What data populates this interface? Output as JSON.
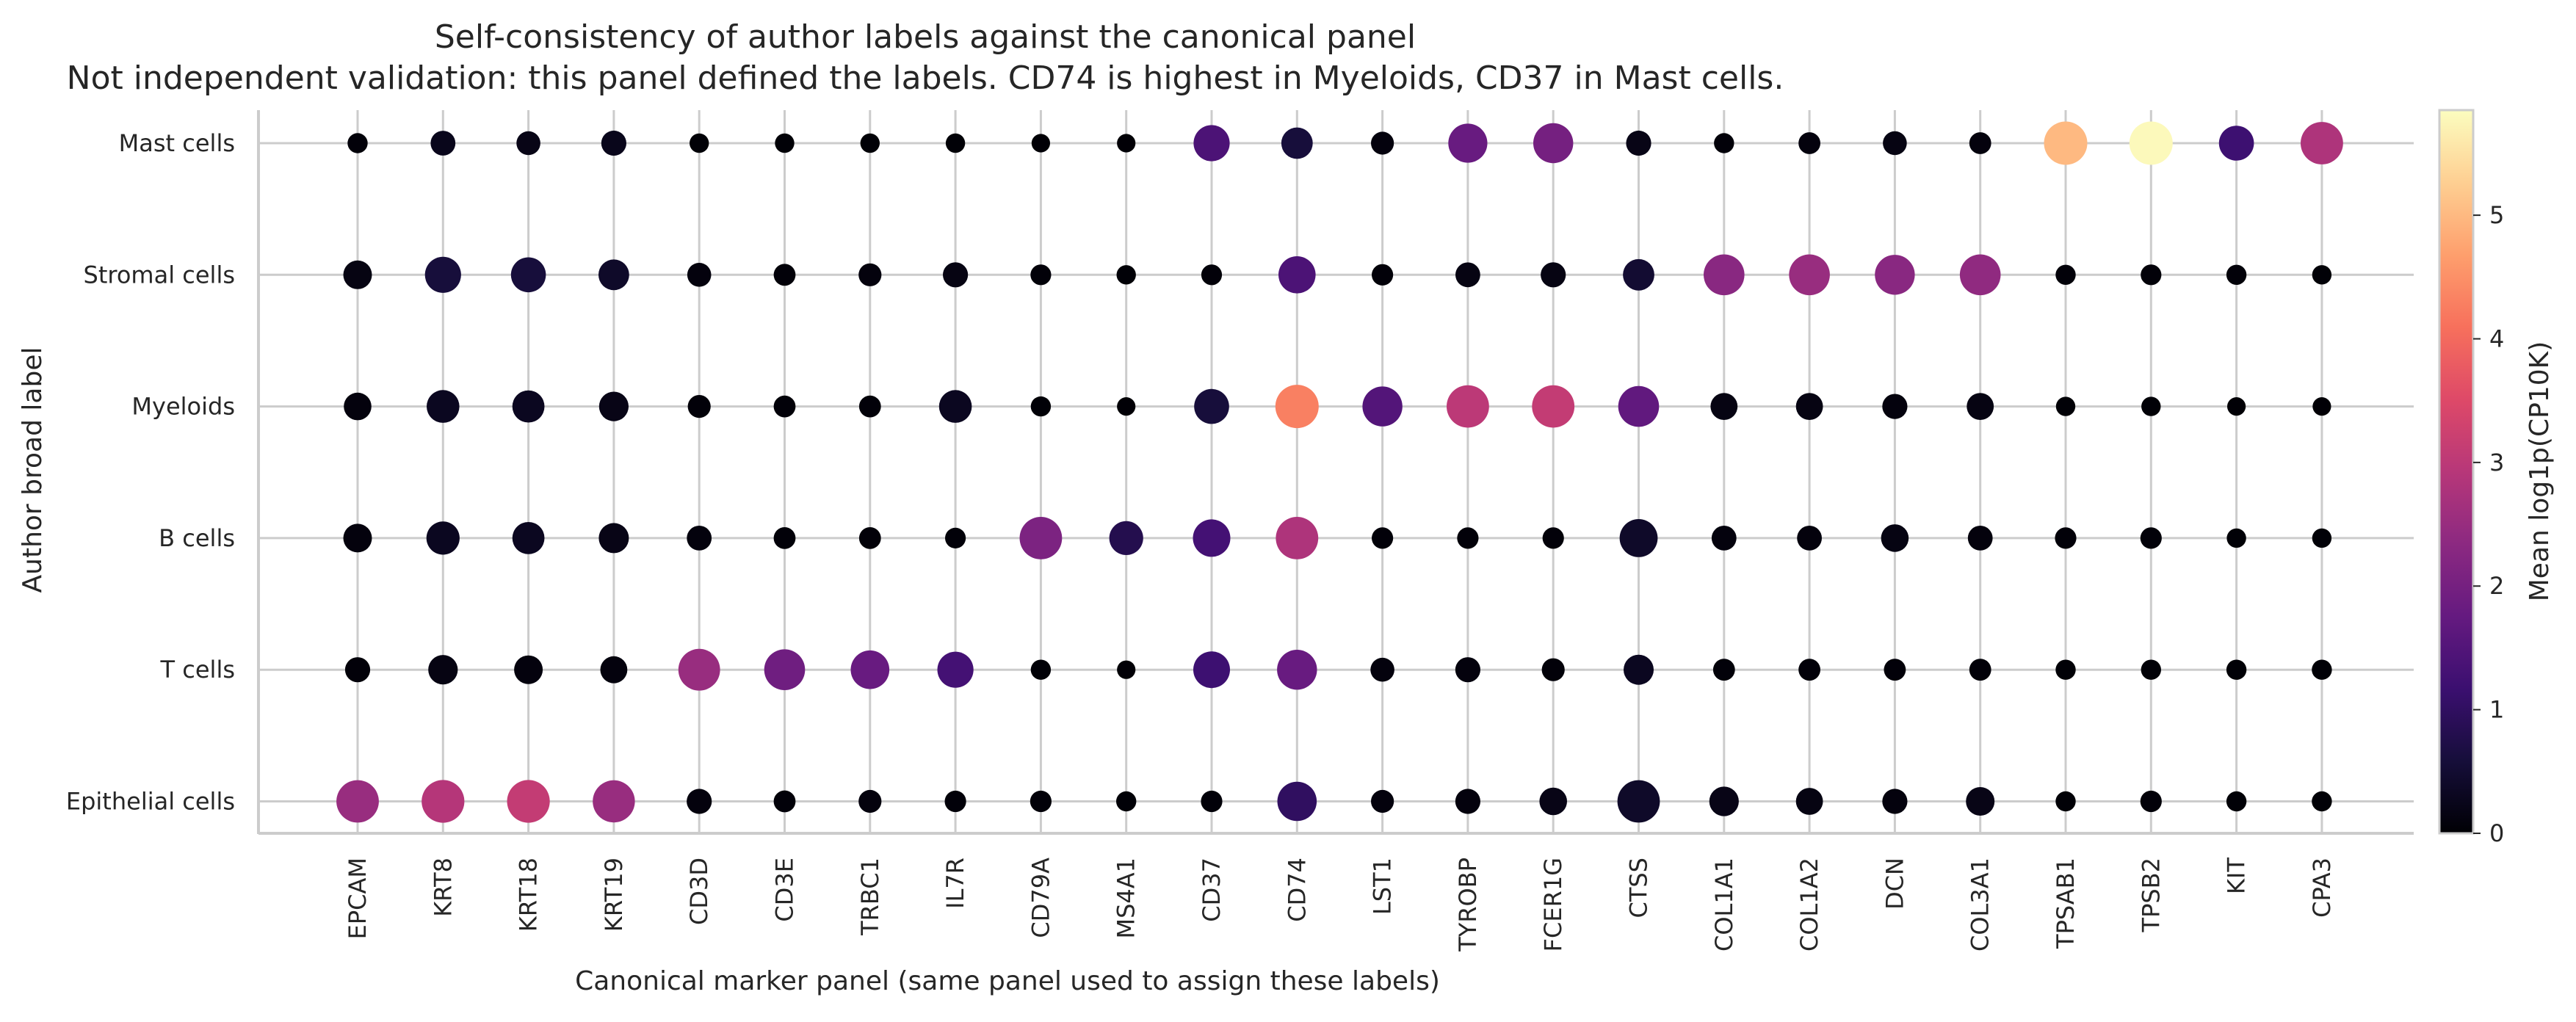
{
  "chart_data": {
    "type": "dotplot",
    "title": "Self-consistency of author labels against the canonical panel",
    "subtitle": "Not independent validation: this panel defined the labels. CD74 is highest in Myeloids, CD37 in Mast cells.",
    "xlabel": "Canonical marker panel (same panel used to assign these labels)",
    "ylabel": "Author broad label",
    "colorbar_label": "Mean log1p(CP10K)",
    "colormap": "magma",
    "color_range": [
      0,
      5.85
    ],
    "colorbar_ticks": [
      "0",
      "1",
      "2",
      "3",
      "4",
      "5"
    ],
    "grid": true,
    "x_categories": [
      "EPCAM",
      "KRT8",
      "KRT18",
      "KRT19",
      "CD3D",
      "CD3E",
      "TRBC1",
      "IL7R",
      "CD79A",
      "MS4A1",
      "CD37",
      "CD74",
      "LST1",
      "TYROBP",
      "FCER1G",
      "CTSS",
      "COL1A1",
      "COL1A2",
      "DCN",
      "COL3A1",
      "TPSAB1",
      "TPSB2",
      "KIT",
      "CPA3"
    ],
    "y_categories": [
      "Mast cells",
      "Stromal cells",
      "Myeloids",
      "B cells",
      "T cells",
      "Epithelial cells"
    ],
    "rows": [
      {
        "label": "Mast cells",
        "values": [
          0.05,
          0.25,
          0.2,
          0.25,
          0.03,
          0.03,
          0.03,
          0.03,
          0.02,
          0.02,
          1.4,
          0.6,
          0.1,
          1.8,
          2.0,
          0.2,
          0.05,
          0.1,
          0.15,
          0.1,
          5.0,
          5.8,
          1.2,
          2.8
        ],
        "fraction": [
          0.05,
          0.14,
          0.12,
          0.15,
          0.04,
          0.04,
          0.04,
          0.04,
          0.03,
          0.03,
          0.55,
          0.35,
          0.1,
          0.7,
          0.75,
          0.15,
          0.05,
          0.08,
          0.12,
          0.08,
          0.95,
          0.95,
          0.5,
          0.9
        ]
      },
      {
        "label": "Stromal cells",
        "values": [
          0.15,
          0.6,
          0.6,
          0.4,
          0.1,
          0.05,
          0.1,
          0.15,
          0.05,
          0.03,
          0.05,
          1.4,
          0.05,
          0.15,
          0.15,
          0.5,
          2.3,
          2.5,
          2.3,
          2.4,
          0.05,
          0.05,
          0.05,
          0.03
        ],
        "fraction": [
          0.25,
          0.55,
          0.5,
          0.32,
          0.12,
          0.08,
          0.1,
          0.15,
          0.06,
          0.04,
          0.06,
          0.6,
          0.07,
          0.14,
          0.15,
          0.35,
          0.8,
          0.8,
          0.75,
          0.8,
          0.05,
          0.06,
          0.05,
          0.04
        ]
      },
      {
        "label": "Myeloids",
        "values": [
          0.1,
          0.3,
          0.3,
          0.2,
          0.05,
          0.05,
          0.05,
          0.3,
          0.03,
          0.02,
          0.6,
          4.3,
          1.5,
          3.0,
          3.1,
          1.7,
          0.15,
          0.15,
          0.1,
          0.15,
          0.03,
          0.03,
          0.02,
          0.02
        ],
        "fraction": [
          0.22,
          0.4,
          0.38,
          0.28,
          0.1,
          0.08,
          0.08,
          0.4,
          0.05,
          0.03,
          0.5,
          0.95,
          0.75,
          0.9,
          0.9,
          0.8,
          0.2,
          0.2,
          0.15,
          0.2,
          0.04,
          0.04,
          0.03,
          0.03
        ]
      },
      {
        "label": "B cells",
        "values": [
          0.1,
          0.3,
          0.3,
          0.2,
          0.1,
          0.05,
          0.05,
          0.05,
          2.1,
          0.8,
          1.3,
          2.8,
          0.05,
          0.05,
          0.05,
          0.4,
          0.1,
          0.1,
          0.15,
          0.1,
          0.05,
          0.05,
          0.03,
          0.03
        ],
        "fraction": [
          0.25,
          0.42,
          0.38,
          0.3,
          0.14,
          0.08,
          0.08,
          0.06,
          0.9,
          0.45,
          0.62,
          0.9,
          0.07,
          0.07,
          0.07,
          0.65,
          0.14,
          0.14,
          0.22,
          0.14,
          0.07,
          0.07,
          0.04,
          0.04
        ]
      },
      {
        "label": "T cells",
        "values": [
          0.05,
          0.15,
          0.1,
          0.1,
          2.5,
          1.9,
          1.8,
          1.3,
          0.03,
          0.02,
          1.2,
          1.8,
          0.1,
          0.1,
          0.05,
          0.3,
          0.05,
          0.05,
          0.05,
          0.05,
          0.03,
          0.03,
          0.03,
          0.03
        ],
        "fraction": [
          0.15,
          0.28,
          0.25,
          0.2,
          0.85,
          0.8,
          0.68,
          0.55,
          0.05,
          0.03,
          0.58,
          0.75,
          0.12,
          0.15,
          0.1,
          0.3,
          0.08,
          0.08,
          0.08,
          0.08,
          0.05,
          0.05,
          0.05,
          0.05
        ]
      },
      {
        "label": "Epithelial cells",
        "values": [
          2.5,
          2.9,
          3.1,
          2.5,
          0.1,
          0.05,
          0.1,
          0.05,
          0.05,
          0.03,
          0.05,
          1.0,
          0.1,
          0.1,
          0.2,
          0.4,
          0.2,
          0.15,
          0.1,
          0.2,
          0.03,
          0.05,
          0.03,
          0.03
        ],
        "fraction": [
          0.9,
          0.92,
          0.92,
          0.88,
          0.15,
          0.08,
          0.1,
          0.07,
          0.07,
          0.05,
          0.07,
          0.72,
          0.1,
          0.15,
          0.22,
          0.9,
          0.28,
          0.2,
          0.15,
          0.25,
          0.05,
          0.07,
          0.05,
          0.05
        ]
      }
    ]
  }
}
